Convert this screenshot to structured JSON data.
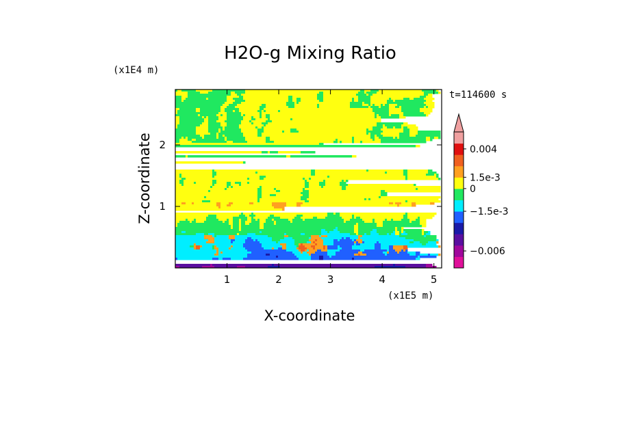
{
  "chart_data": {
    "type": "heatmap",
    "title": "H2O-g Mixing Ratio",
    "xlabel": "X-coordinate",
    "ylabel": "Z-coordinate",
    "x_scale_label": "(x1E5 m)",
    "y_scale_label": "(x1E4 m)",
    "time_label": "t=114600 s",
    "xlim": [
      0,
      5.15
    ],
    "ylim": [
      0,
      2.9
    ],
    "x_ticks": [
      "1",
      "2",
      "3",
      "4",
      "5"
    ],
    "x_tick_values": [
      1,
      2,
      3,
      4,
      5
    ],
    "y_ticks": [
      "1",
      "2"
    ],
    "y_tick_values": [
      1,
      2
    ],
    "colorbar": {
      "colors": [
        "#e0109a",
        "#a0089c",
        "#5a0fa0",
        "#1a1aa8",
        "#2060ff",
        "#00eeff",
        "#20e860",
        "#ffff10",
        "#ffa020",
        "#f06020",
        "#e01010",
        "#f0a0a0"
      ],
      "labels": [
        "0.004",
        "1.5e-3",
        "0",
        "−1.5e-3",
        "−0.006"
      ],
      "label_levels": [
        10.5,
        8,
        7,
        5,
        1.5
      ],
      "extend": "max"
    },
    "field": {
      "description_levels": "band index per region (0=magenta low ... 11=pink high)",
      "layers": [
        {
          "z_range": [
            0.0,
            0.15
          ],
          "dominant": "purple/blue"
        },
        {
          "z_range": [
            0.15,
            0.55
          ],
          "dominant": "blue/cyan with orange cells"
        },
        {
          "z_range": [
            0.55,
            1.0
          ],
          "dominant": "cyan/green/yellow plumes"
        },
        {
          "z_range": [
            1.0,
            1.55
          ],
          "dominant": "yellow"
        },
        {
          "z_range": [
            1.55,
            2.0
          ],
          "dominant": "green/yellow bands"
        },
        {
          "z_range": [
            2.0,
            2.9
          ],
          "dominant": "green with yellow patches"
        }
      ]
    }
  }
}
